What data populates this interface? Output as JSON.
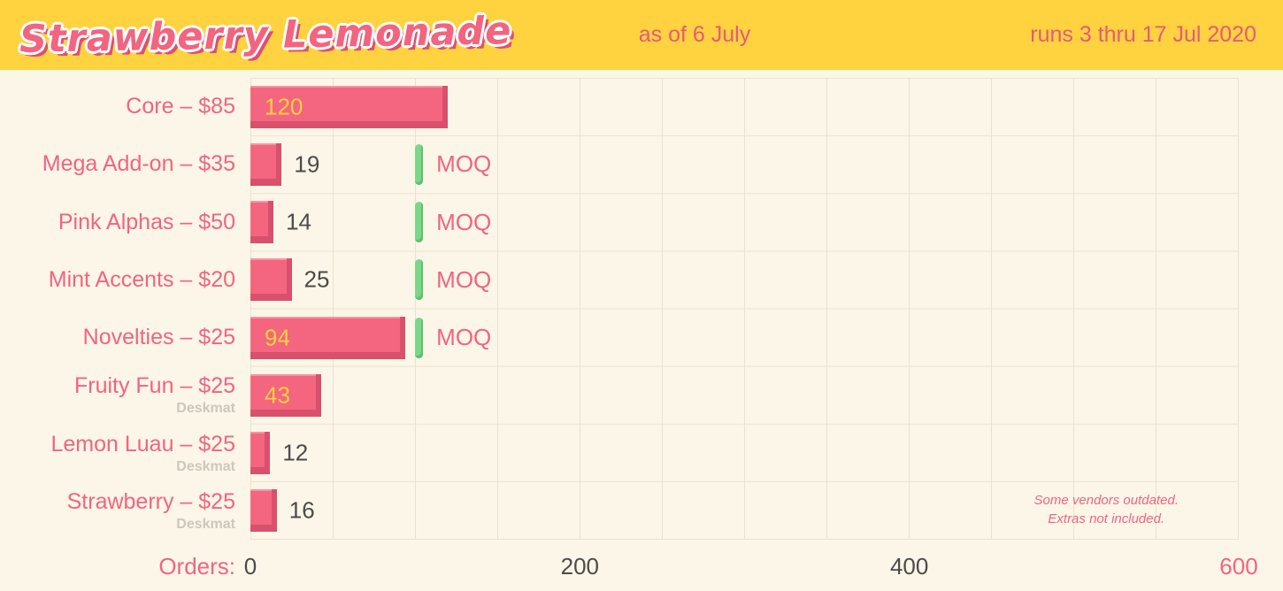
{
  "header": {
    "logo": "Strawberry Lemonade",
    "as_of": "as of 6 July",
    "runs": "runs 3 thru 17 Jul 2020"
  },
  "moq_label": "MOQ",
  "axis": {
    "label": "Orders:",
    "ticks": [
      "0",
      "200",
      "400",
      "600"
    ]
  },
  "note": {
    "line1": "Some vendors outdated.",
    "line2": "Extras not included."
  },
  "colors": {
    "banner_yellow": "#FFD23F",
    "pink_accent": "#F2647F",
    "bar_pink": "#F4657F",
    "bar_shadow": "#D9506C",
    "moq_green": "#7BD88A",
    "value_inside_yellow": "#FFD23F",
    "value_outside_dark": "#4B4B4B",
    "background_cream": "#FCF6E8"
  },
  "chart_data": {
    "type": "bar",
    "orientation": "horizontal",
    "title": "Strawberry Lemonade",
    "xlabel": "Orders",
    "xlim": [
      0,
      600
    ],
    "x_ticks": [
      0,
      200,
      400,
      600
    ],
    "gridline_step": 50,
    "grid": true,
    "moq_value": 100,
    "categories": [
      "Core – $85",
      "Mega Add-on – $35",
      "Pink Alphas – $50",
      "Mint Accents – $20",
      "Novelties – $25",
      "Fruity Fun – $25 (Deskmat)",
      "Lemon Luau – $25 (Deskmat)",
      "Strawberry – $25 (Deskmat)"
    ],
    "values": [
      120,
      19,
      14,
      25,
      94,
      43,
      12,
      16
    ],
    "rows": [
      {
        "label": "Core – $85",
        "sublabel": "",
        "value": 120,
        "moq": false
      },
      {
        "label": "Mega Add-on – $35",
        "sublabel": "",
        "value": 19,
        "moq": true
      },
      {
        "label": "Pink Alphas – $50",
        "sublabel": "",
        "value": 14,
        "moq": true
      },
      {
        "label": "Mint Accents – $20",
        "sublabel": "",
        "value": 25,
        "moq": true
      },
      {
        "label": "Novelties – $25",
        "sublabel": "",
        "value": 94,
        "moq": true
      },
      {
        "label": "Fruity Fun – $25",
        "sublabel": "Deskmat",
        "value": 43,
        "moq": false
      },
      {
        "label": "Lemon Luau – $25",
        "sublabel": "Deskmat",
        "value": 12,
        "moq": false
      },
      {
        "label": "Strawberry – $25",
        "sublabel": "Deskmat",
        "value": 16,
        "moq": false
      }
    ]
  }
}
